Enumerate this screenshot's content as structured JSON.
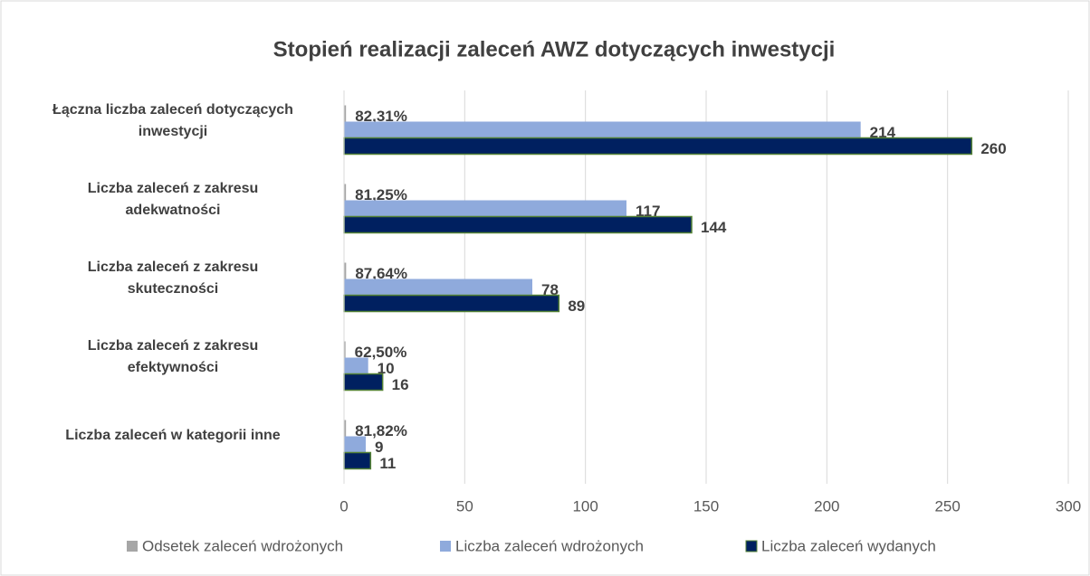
{
  "chart_data": {
    "type": "bar",
    "orientation": "horizontal",
    "title": "Stopień realizacji zaleceń AWZ dotyczących inwestycji",
    "categories": [
      "Łączna liczba zaleceń dotyczących\ninwestycji",
      "Liczba zaleceń z zakresu\nadekwatności",
      "Liczba zaleceń z zakresu\nskuteczności",
      "Liczba zaleceń z zakresu\nefektywności",
      "Liczba zaleceń w kategorii inne"
    ],
    "series": [
      {
        "name": "Odsetek zaleceń wdrożonych",
        "color": "#a6a6a6",
        "values": [
          0.8231,
          0.8125,
          0.8764,
          0.625,
          0.8182
        ],
        "value_labels": [
          "82,31%",
          "81,25%",
          "87,64%",
          "62,50%",
          "81,82%"
        ]
      },
      {
        "name": "Liczba zaleceń wdrożonych",
        "color": "#8faadc",
        "values": [
          214,
          117,
          78,
          10,
          9
        ]
      },
      {
        "name": "Liczba zaleceń wydanych",
        "color": "#002060",
        "values": [
          260,
          144,
          89,
          16,
          11
        ]
      }
    ],
    "xlim": [
      0,
      300
    ],
    "xticks": [
      0,
      50,
      100,
      150,
      200,
      250,
      300
    ],
    "grid": true,
    "legend": "bottom"
  }
}
